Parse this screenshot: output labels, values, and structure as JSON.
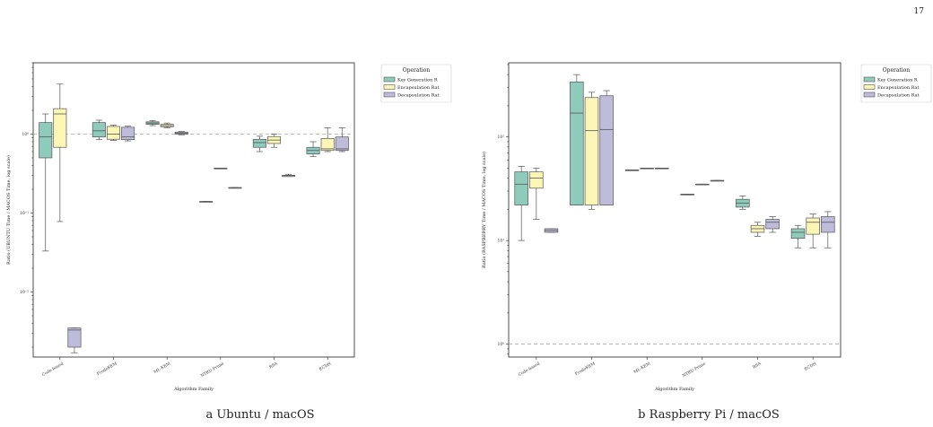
{
  "page_number": "17",
  "captions": [
    "a Ubuntu / macOS",
    "b Raspberry Pi / macOS"
  ],
  "colors": {
    "keygen": "#8fcbbb",
    "encaps": "#fbf6b6",
    "decaps": "#bfbbda",
    "edge": "#555555",
    "grid_ref": "#aaaaaa"
  },
  "chart_data": [
    {
      "type": "box",
      "title": "",
      "xlabel": "Algorithm Family",
      "ylabel": "Ratio (UBUNTU Time / MACOS Time, log scale)",
      "yscale": "log",
      "ylim": [
        0.0015,
        8
      ],
      "yticks": [
        0.01,
        0.1,
        1
      ],
      "ytick_labels": [
        "10⁻²",
        "10⁻¹",
        "10⁰"
      ],
      "reference_line": 1,
      "categories": [
        "Code-based",
        "FrodoKEM",
        "ML-KEM",
        "NTRU-Prime",
        "RSA",
        "ECDH"
      ],
      "legend": {
        "title": "Operation",
        "entries": [
          "Key Generation R",
          "Encapsulation Rat",
          "Decapsulation Rat"
        ],
        "placement": "outside-right"
      },
      "series": [
        {
          "name": "Key Generation R",
          "boxes": [
            {
              "whislo": 0.033,
              "q1": 0.5,
              "med": 0.92,
              "q3": 1.4,
              "whishi": 1.8
            },
            {
              "whislo": 0.85,
              "q1": 0.92,
              "med": 1.1,
              "q3": 1.4,
              "whishi": 1.5
            },
            {
              "whislo": 1.28,
              "q1": 1.33,
              "med": 1.38,
              "q3": 1.43,
              "whishi": 1.48
            },
            {
              "whislo": 0.14,
              "q1": 0.14,
              "med": 0.14,
              "q3": 0.14,
              "whishi": 0.14
            },
            {
              "whislo": 0.6,
              "q1": 0.68,
              "med": 0.78,
              "q3": 0.86,
              "whishi": 0.94
            },
            {
              "whislo": 0.52,
              "q1": 0.56,
              "med": 0.62,
              "q3": 0.68,
              "whishi": 0.8
            }
          ]
        },
        {
          "name": "Encapsulation Rat",
          "boxes": [
            {
              "whislo": 0.078,
              "q1": 0.68,
              "med": 1.8,
              "q3": 2.1,
              "whishi": 4.3
            },
            {
              "whislo": 0.83,
              "q1": 0.86,
              "med": 1.0,
              "q3": 1.25,
              "whishi": 1.3
            },
            {
              "whislo": 1.2,
              "q1": 1.24,
              "med": 1.28,
              "q3": 1.33,
              "whishi": 1.38
            },
            {
              "whislo": 0.37,
              "q1": 0.37,
              "med": 0.37,
              "q3": 0.37,
              "whishi": 0.37
            },
            {
              "whislo": 0.68,
              "q1": 0.76,
              "med": 0.84,
              "q3": 0.93,
              "whishi": 1.0
            },
            {
              "whislo": 0.6,
              "q1": 0.62,
              "med": 0.65,
              "q3": 0.88,
              "whishi": 1.2
            }
          ]
        },
        {
          "name": "Decapsulation Rat",
          "boxes": [
            {
              "whislo": 0.0017,
              "q1": 0.002,
              "med": 0.0033,
              "q3": 0.0035,
              "whishi": 0.0035
            },
            {
              "whislo": 0.82,
              "q1": 0.85,
              "med": 0.92,
              "q3": 1.22,
              "whishi": 1.26
            },
            {
              "whislo": 0.98,
              "q1": 1.0,
              "med": 1.03,
              "q3": 1.06,
              "whishi": 1.08
            },
            {
              "whislo": 0.21,
              "q1": 0.21,
              "med": 0.21,
              "q3": 0.21,
              "whishi": 0.21
            },
            {
              "whislo": 0.29,
              "q1": 0.29,
              "med": 0.3,
              "q3": 0.3,
              "whishi": 0.31
            },
            {
              "whislo": 0.6,
              "q1": 0.62,
              "med": 0.65,
              "q3": 0.92,
              "whishi": 1.2
            }
          ]
        }
      ]
    },
    {
      "type": "box",
      "title": "",
      "xlabel": "Algorithm Family",
      "ylabel": "Ratio (RASPBERRY Time / MACOS Time, log scale)",
      "yscale": "log",
      "ylim": [
        0.75,
        520
      ],
      "yticks": [
        1,
        10,
        100
      ],
      "ytick_labels": [
        "10⁰",
        "10¹",
        "10²"
      ],
      "reference_line": 1,
      "categories": [
        "Code-based",
        "FrodoKEM",
        "ML-KEM",
        "NTRU-Prime",
        "RSA",
        "ECDH"
      ],
      "legend": {
        "title": "Operation",
        "entries": [
          "Key Generation R",
          "Encapsulation Rat",
          "Decapsulation Rat"
        ],
        "placement": "outside-right"
      },
      "series": [
        {
          "name": "Key Generation R",
          "boxes": [
            {
              "whislo": 10,
              "q1": 22,
              "med": 35,
              "q3": 46,
              "whishi": 52
            },
            {
              "whislo": 22,
              "q1": 22,
              "med": 170,
              "q3": 340,
              "whishi": 400
            },
            {
              "whislo": 48,
              "q1": 48,
              "med": 48,
              "q3": 48,
              "whishi": 48
            },
            {
              "whislo": 28,
              "q1": 28,
              "med": 28,
              "q3": 28,
              "whishi": 28
            },
            {
              "whislo": 20,
              "q1": 21,
              "med": 23,
              "q3": 25,
              "whishi": 27
            },
            {
              "whislo": 8.5,
              "q1": 10.5,
              "med": 12,
              "q3": 13,
              "whishi": 14
            }
          ]
        },
        {
          "name": "Encapsulation Rat",
          "boxes": [
            {
              "whislo": 16,
              "q1": 32,
              "med": 40,
              "q3": 46,
              "whishi": 50
            },
            {
              "whislo": 20,
              "q1": 22,
              "med": 115,
              "q3": 240,
              "whishi": 270
            },
            {
              "whislo": 50,
              "q1": 50,
              "med": 50,
              "q3": 50,
              "whishi": 50
            },
            {
              "whislo": 35,
              "q1": 35,
              "med": 35,
              "q3": 35,
              "whishi": 35
            },
            {
              "whislo": 11,
              "q1": 12,
              "med": 13,
              "q3": 14,
              "whishi": 15
            },
            {
              "whislo": 8.5,
              "q1": 11.5,
              "med": 15,
              "q3": 16.5,
              "whishi": 18
            }
          ]
        },
        {
          "name": "Decapsulation Rat",
          "boxes": [
            {
              "whislo": 12,
              "q1": 12,
              "med": 12.5,
              "q3": 13,
              "whishi": 13
            },
            {
              "whislo": 22,
              "q1": 22,
              "med": 118,
              "q3": 250,
              "whishi": 280
            },
            {
              "whislo": 50,
              "q1": 50,
              "med": 50,
              "q3": 50,
              "whishi": 50
            },
            {
              "whislo": 38,
              "q1": 38,
              "med": 38,
              "q3": 38,
              "whishi": 38
            },
            {
              "whislo": 12,
              "q1": 13,
              "med": 15,
              "q3": 16,
              "whishi": 17
            },
            {
              "whislo": 8.5,
              "q1": 12,
              "med": 15,
              "q3": 17,
              "whishi": 19
            }
          ]
        }
      ]
    }
  ]
}
